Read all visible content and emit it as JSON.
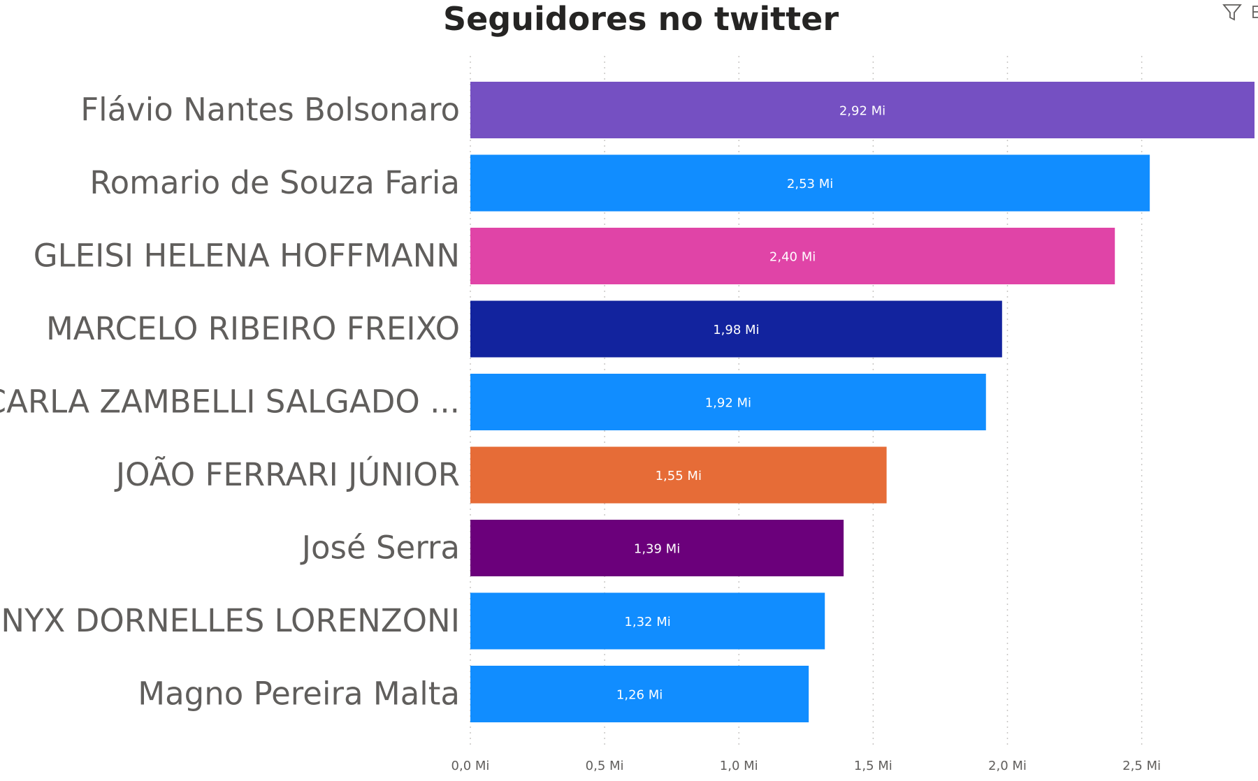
{
  "visual": {
    "header_icons": [
      "filter-icon",
      "focus-mode-icon"
    ]
  },
  "chart_data": {
    "type": "bar",
    "orientation": "horizontal",
    "title": "Seguidores no twitter",
    "categories": [
      "Flávio Nantes Bolsonaro",
      "Romario de Souza Faria",
      "GLEISI HELENA HOFFMANN",
      "MARCELO RIBEIRO FREIXO",
      "CARLA ZAMBELLI SALGADO ...",
      "JOÃO FERRARI JÚNIOR",
      "José Serra",
      "ONYX DORNELLES LORENZONI",
      "Magno Pereira Malta"
    ],
    "values": [
      2.92,
      2.53,
      2.4,
      1.98,
      1.92,
      1.55,
      1.39,
      1.32,
      1.26
    ],
    "value_labels": [
      "2,92 Mi",
      "2,53 Mi",
      "2,40 Mi",
      "1,98 Mi",
      "1,92 Mi",
      "1,55 Mi",
      "1,39 Mi",
      "1,32 Mi",
      "1,26 Mi"
    ],
    "colors": [
      "#7550c2",
      "#118dff",
      "#e044a7",
      "#12239e",
      "#118dff",
      "#e66c37",
      "#6b007b",
      "#118dff",
      "#118dff"
    ],
    "xlim": [
      0,
      2.92
    ],
    "xticks": [
      0,
      0.5,
      1.0,
      1.5,
      2.0,
      2.5
    ],
    "xtick_labels": [
      "0,0 Mi",
      "0,5 Mi",
      "1,0 Mi",
      "1,5 Mi",
      "2,0 Mi",
      "2,5 Mi"
    ],
    "grid": "vertical dotted",
    "legend": "none"
  }
}
